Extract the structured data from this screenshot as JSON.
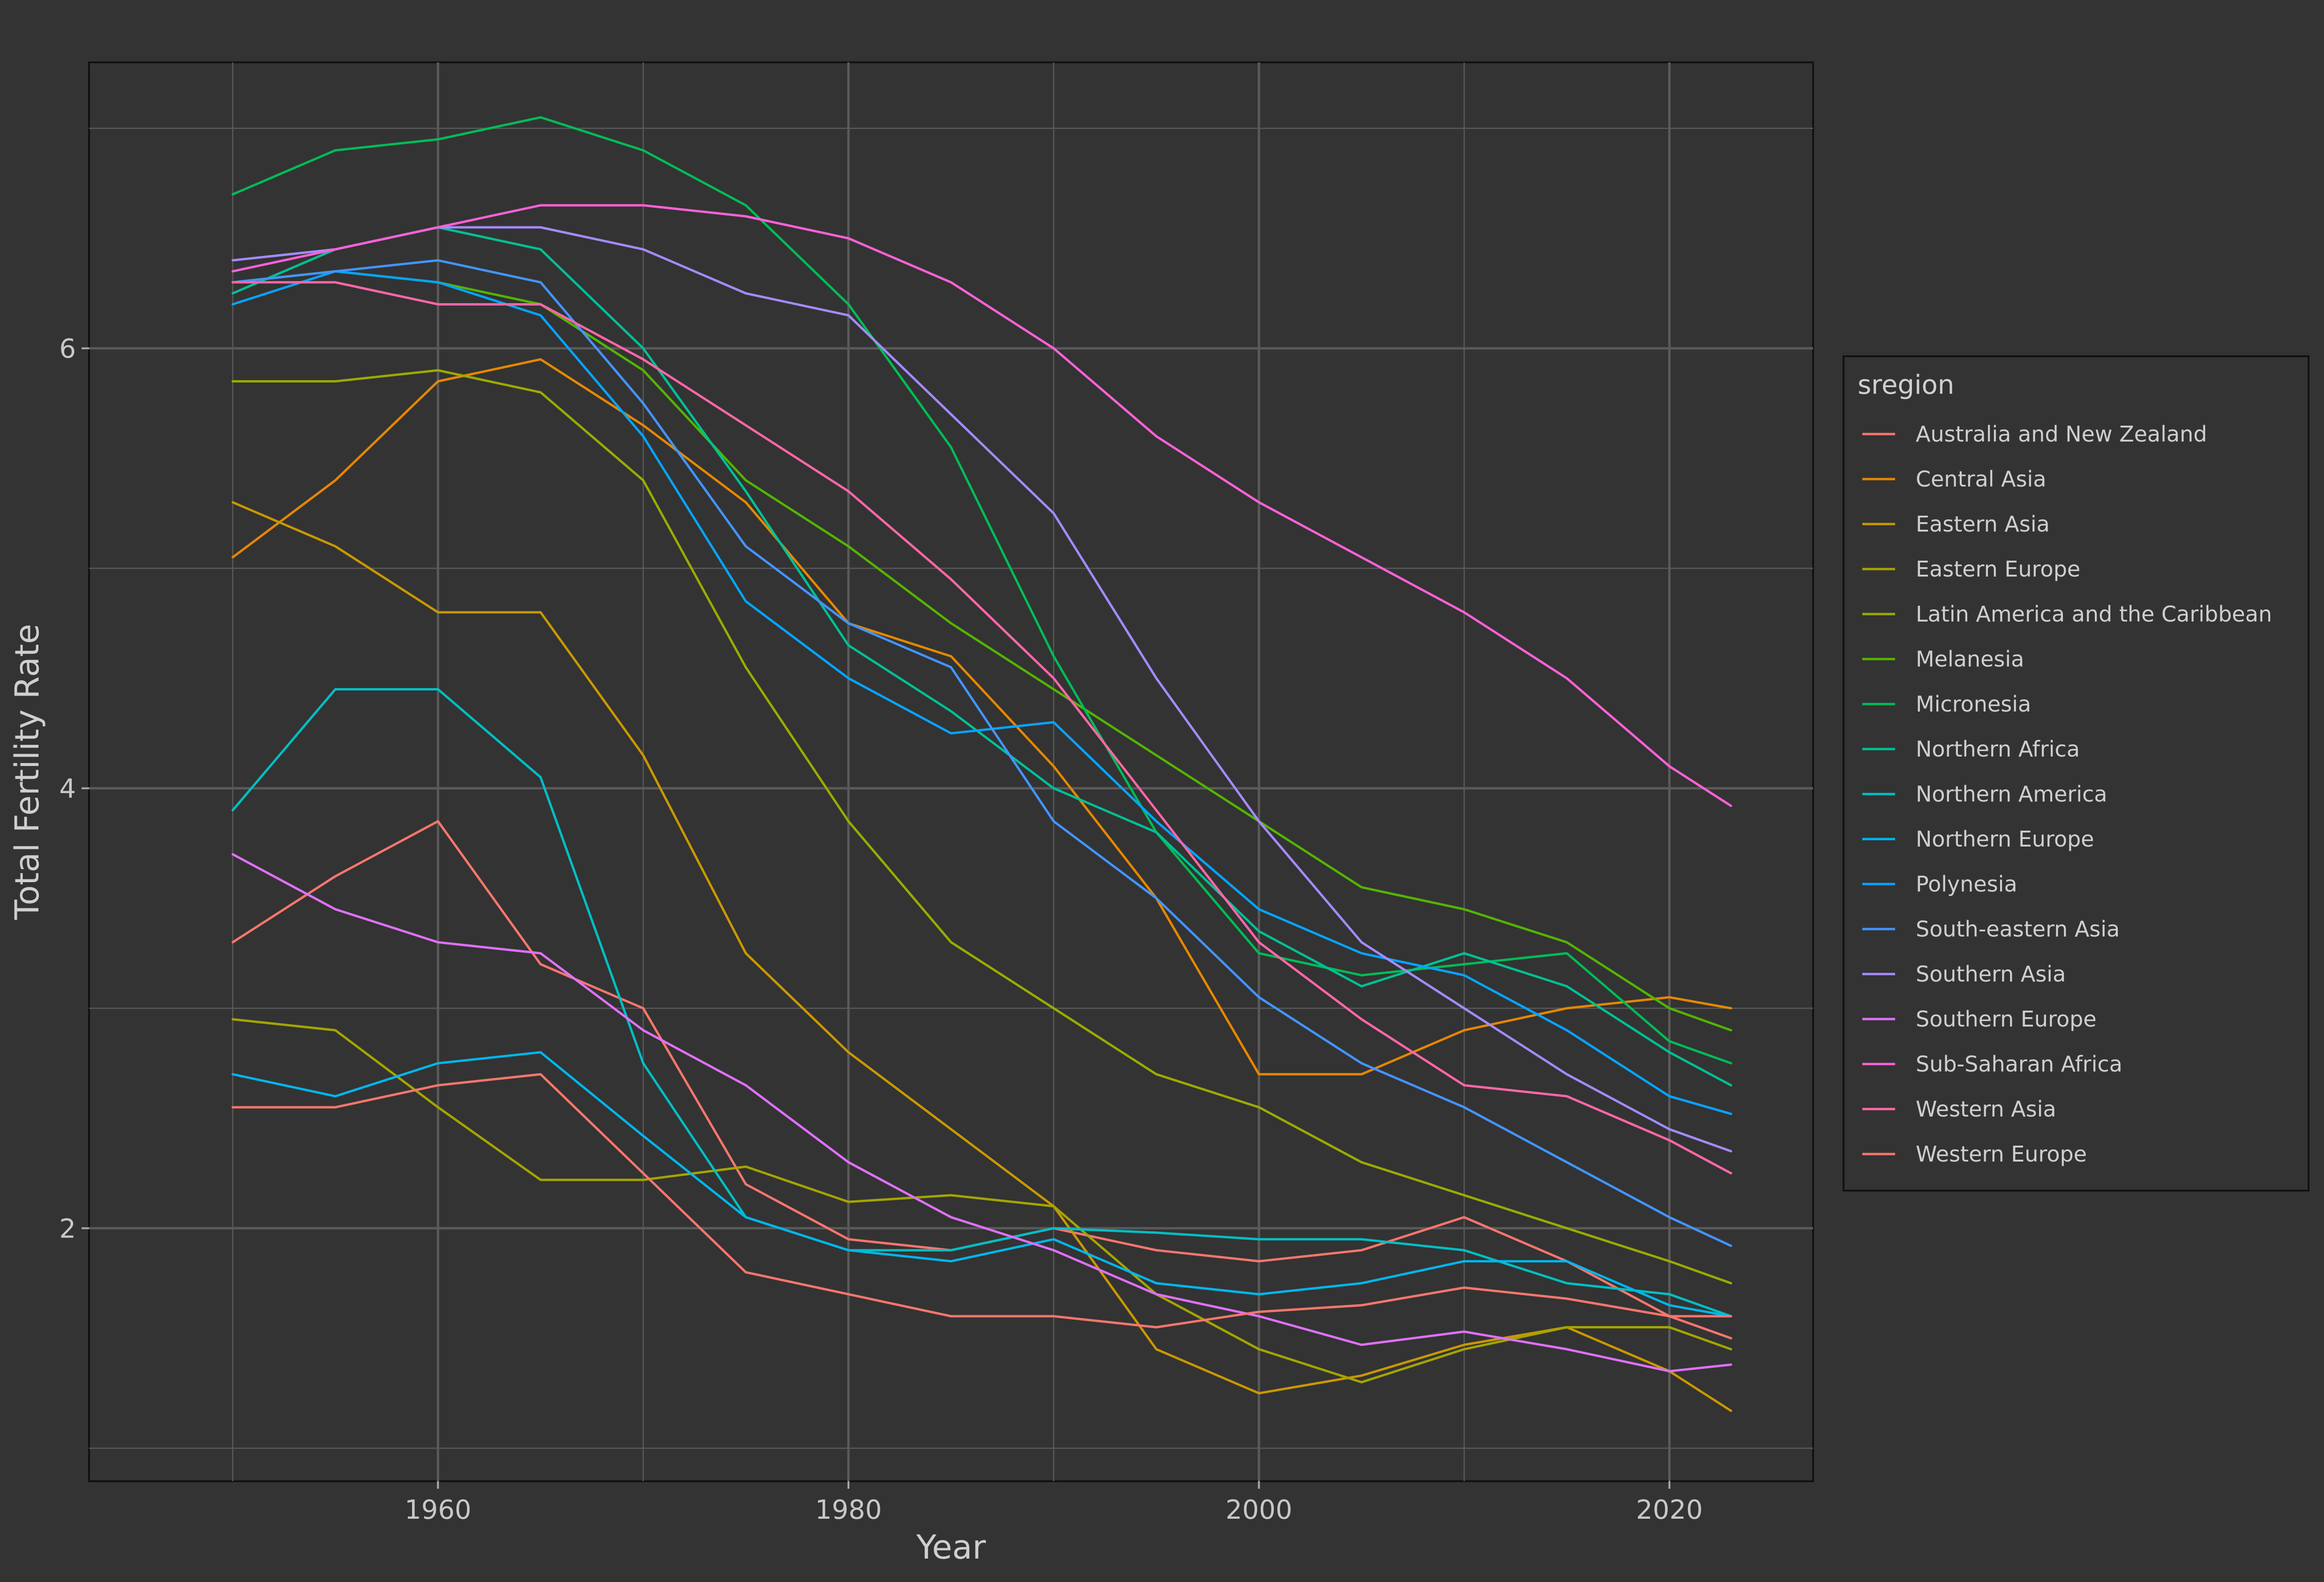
{
  "chart_data": {
    "type": "line",
    "title": "",
    "xlabel": "Year",
    "ylabel": "Total Fertility Rate",
    "xlim": [
      1943,
      2027
    ],
    "ylim": [
      0.85,
      7.3
    ],
    "x_ticks": [
      1960,
      1980,
      2000,
      2020
    ],
    "y_ticks": [
      2,
      4,
      6
    ],
    "grid": true,
    "background": "#333333",
    "grid_color": "#5a5a5a",
    "legend": {
      "title": "sregion",
      "position": "right"
    },
    "x": [
      1950,
      1955,
      1960,
      1965,
      1970,
      1975,
      1980,
      1985,
      1990,
      1995,
      2000,
      2005,
      2010,
      2015,
      2020,
      2023
    ],
    "series": [
      {
        "name": "Australia and New Zealand",
        "color": "#F8766D",
        "values": [
          3.3,
          3.6,
          3.85,
          3.2,
          3.0,
          2.2,
          1.95,
          1.9,
          2.0,
          1.9,
          1.85,
          1.9,
          2.05,
          1.85,
          1.6,
          1.5
        ]
      },
      {
        "name": "Central Asia",
        "color": "#E58700",
        "values": [
          5.05,
          5.4,
          5.85,
          5.95,
          5.65,
          5.3,
          4.75,
          4.6,
          4.1,
          3.5,
          2.7,
          2.7,
          2.9,
          3.0,
          3.05,
          3.0
        ]
      },
      {
        "name": "Eastern Asia",
        "color": "#C99800",
        "values": [
          5.3,
          5.1,
          4.8,
          4.8,
          4.15,
          3.25,
          2.8,
          2.45,
          2.1,
          1.45,
          1.25,
          1.33,
          1.47,
          1.55,
          1.35,
          1.17
        ]
      },
      {
        "name": "Eastern Europe",
        "color": "#A3A500",
        "values": [
          2.95,
          2.9,
          2.55,
          2.22,
          2.22,
          2.28,
          2.12,
          2.15,
          2.1,
          1.7,
          1.45,
          1.3,
          1.45,
          1.55,
          1.55,
          1.45
        ]
      },
      {
        "name": "Latin America and the Caribbean",
        "color": "#9AAB00",
        "values": [
          5.85,
          5.85,
          5.9,
          5.8,
          5.4,
          4.55,
          3.85,
          3.3,
          3.0,
          2.7,
          2.55,
          2.3,
          2.15,
          2.0,
          1.85,
          1.75
        ]
      },
      {
        "name": "Melanesia",
        "color": "#53B400",
        "values": [
          6.3,
          6.35,
          6.3,
          6.2,
          5.9,
          5.4,
          5.1,
          4.75,
          4.45,
          4.15,
          3.85,
          3.55,
          3.45,
          3.3,
          3.0,
          2.9
        ]
      },
      {
        "name": "Micronesia",
        "color": "#00BC56",
        "values": [
          6.7,
          6.9,
          6.95,
          7.05,
          6.9,
          6.65,
          6.2,
          5.55,
          4.6,
          3.8,
          3.25,
          3.15,
          3.2,
          3.25,
          2.85,
          2.75
        ]
      },
      {
        "name": "Northern Africa",
        "color": "#00C094",
        "values": [
          6.25,
          6.45,
          6.55,
          6.45,
          6.0,
          5.35,
          4.65,
          4.35,
          4.0,
          3.8,
          3.35,
          3.1,
          3.25,
          3.1,
          2.8,
          2.65
        ]
      },
      {
        "name": "Northern America",
        "color": "#00BFC4",
        "values": [
          3.9,
          4.45,
          4.45,
          4.05,
          2.75,
          2.05,
          1.9,
          1.9,
          2.0,
          1.98,
          1.95,
          1.95,
          1.9,
          1.75,
          1.7,
          1.6
        ]
      },
      {
        "name": "Northern Europe",
        "color": "#00B6EB",
        "values": [
          2.7,
          2.6,
          2.75,
          2.8,
          2.42,
          2.05,
          1.9,
          1.85,
          1.95,
          1.75,
          1.7,
          1.75,
          1.85,
          1.85,
          1.65,
          1.6
        ]
      },
      {
        "name": "Polynesia",
        "color": "#06A4FF",
        "values": [
          6.2,
          6.35,
          6.3,
          6.15,
          5.6,
          4.85,
          4.5,
          4.25,
          4.3,
          3.85,
          3.45,
          3.25,
          3.15,
          2.9,
          2.6,
          2.52
        ]
      },
      {
        "name": "South-eastern Asia",
        "color": "#4394FF",
        "values": [
          6.3,
          6.35,
          6.4,
          6.3,
          5.75,
          5.1,
          4.75,
          4.55,
          3.85,
          3.5,
          3.05,
          2.75,
          2.55,
          2.3,
          2.05,
          1.92
        ]
      },
      {
        "name": "Southern Asia",
        "color": "#A58AFF",
        "values": [
          6.4,
          6.45,
          6.55,
          6.55,
          6.45,
          6.25,
          6.15,
          5.7,
          5.25,
          4.5,
          3.85,
          3.3,
          3.0,
          2.7,
          2.45,
          2.35
        ]
      },
      {
        "name": "Southern Europe",
        "color": "#DF70F8",
        "values": [
          3.7,
          3.45,
          3.3,
          3.25,
          2.9,
          2.65,
          2.3,
          2.05,
          1.9,
          1.7,
          1.6,
          1.47,
          1.53,
          1.45,
          1.35,
          1.38
        ]
      },
      {
        "name": "Sub-Saharan Africa",
        "color": "#FB61D7",
        "values": [
          6.35,
          6.45,
          6.55,
          6.65,
          6.65,
          6.6,
          6.5,
          6.3,
          6.0,
          5.6,
          5.3,
          5.05,
          4.8,
          4.5,
          4.1,
          3.92
        ]
      },
      {
        "name": "Western Asia",
        "color": "#FF66A8",
        "values": [
          6.3,
          6.3,
          6.2,
          6.2,
          5.95,
          5.65,
          5.35,
          4.95,
          4.5,
          3.9,
          3.3,
          2.95,
          2.65,
          2.6,
          2.4,
          2.25
        ]
      },
      {
        "name": "Western Europe",
        "color": "#F8766D",
        "values": [
          2.55,
          2.55,
          2.65,
          2.7,
          2.25,
          1.8,
          1.7,
          1.6,
          1.6,
          1.55,
          1.62,
          1.65,
          1.73,
          1.68,
          1.6,
          1.6
        ]
      }
    ]
  }
}
